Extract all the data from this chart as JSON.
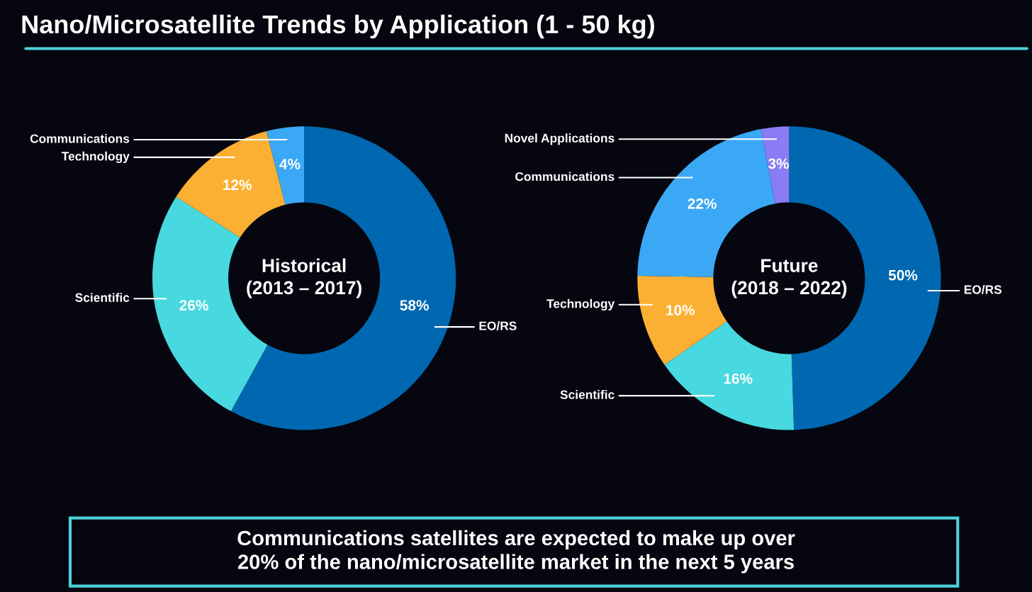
{
  "chart_data": [
    {
      "type": "other",
      "title": "Nano/Microsatellite Trends by Application (1 - 50 kg)",
      "annotations": [
        "Communications satellites are expected to make up over\n20% of the nano/microsatellite market in the next 5 years"
      ]
    },
    {
      "type": "donut",
      "title": "Historical\n(2013 – 2017)",
      "categories": [
        "EO/RS",
        "Scientific",
        "Technology",
        "Communications"
      ],
      "values": [
        58,
        26,
        12,
        4
      ],
      "value_labels": [
        "58%",
        "26%",
        "12%",
        "4%"
      ],
      "colors": [
        "#0068b0",
        "#48d8e0",
        "#fbb034",
        "#3aa8f5"
      ]
    },
    {
      "type": "donut",
      "title": "Future\n(2018 – 2022)",
      "categories": [
        "EO/RS",
        "Scientific",
        "Technology",
        "Communications",
        "Novel Applications"
      ],
      "values": [
        50,
        16,
        10,
        22,
        3
      ],
      "value_labels": [
        "50%",
        "16%",
        "10%",
        "22%",
        "3%"
      ],
      "colors": [
        "#0068b0",
        "#48d8e0",
        "#fbb034",
        "#3aa8f5",
        "#8a7cf5"
      ]
    }
  ]
}
